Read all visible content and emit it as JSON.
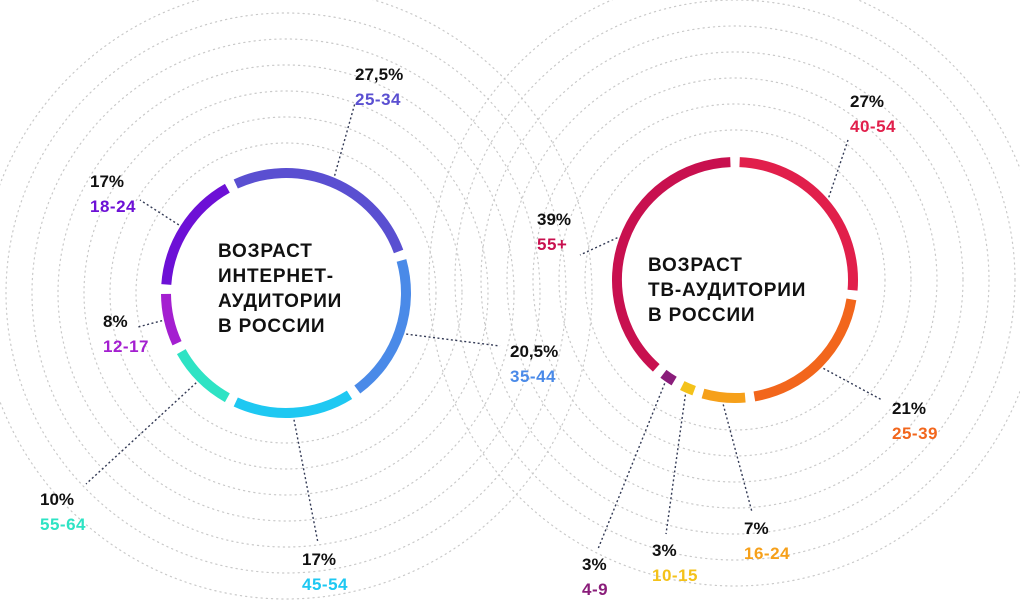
{
  "chart_data": [
    {
      "type": "donut",
      "title_lines": [
        "ВОЗРАСТ",
        "ИНТЕРНЕТ-",
        "АУДИТОРИИ",
        "В РОССИИ"
      ],
      "slices": [
        {
          "pct_label": "27,5%",
          "age": "25-34",
          "value": 27.5,
          "color": "#5a4fd1"
        },
        {
          "pct_label": "20,5%",
          "age": "35-44",
          "value": 20.5,
          "color": "#4a8ae8"
        },
        {
          "pct_label": "17%",
          "age": "45-54",
          "value": 17,
          "color": "#1ec8f2"
        },
        {
          "pct_label": "10%",
          "age": "55-64",
          "value": 10,
          "color": "#2ee3c4"
        },
        {
          "pct_label": "8%",
          "age": "12-17",
          "value": 8,
          "color": "#a41fd0"
        },
        {
          "pct_label": "17%",
          "age": "18-24",
          "value": 17,
          "color": "#6d10d6"
        }
      ]
    },
    {
      "type": "donut",
      "title_lines": [
        "ВОЗРАСТ",
        "ТВ-АУДИТОРИИ",
        "В РОССИИ"
      ],
      "slices": [
        {
          "pct_label": "27%",
          "age": "40-54",
          "value": 27,
          "color": "#e11f4b"
        },
        {
          "pct_label": "21%",
          "age": "25-39",
          "value": 21,
          "color": "#f2661c"
        },
        {
          "pct_label": "7%",
          "age": "16-24",
          "value": 7,
          "color": "#f6a01a"
        },
        {
          "pct_label": "3%",
          "age": "10-15",
          "value": 3,
          "color": "#f4c21a"
        },
        {
          "pct_label": "3%",
          "age": "4-9",
          "value": 3,
          "color": "#8a1d7a"
        },
        {
          "pct_label": "39%",
          "age": "55+",
          "value": 39,
          "color": "#c8104f"
        }
      ]
    }
  ]
}
